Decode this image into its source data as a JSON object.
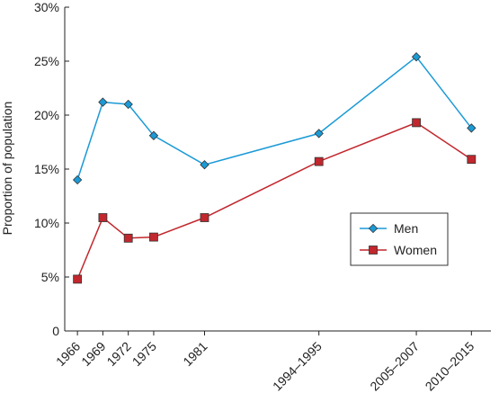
{
  "chart_data": {
    "type": "line",
    "categories": [
      "1966",
      "1969",
      "1972",
      "1975",
      "1981",
      "1994–1995",
      "2005–2007",
      "2010–2015"
    ],
    "x_positions": [
      1966,
      1969,
      1972,
      1975,
      1981,
      1994.5,
      2006,
      2012.5
    ],
    "series": [
      {
        "name": "Men",
        "values": [
          14.0,
          21.2,
          21.0,
          18.1,
          15.4,
          18.3,
          25.4,
          18.8
        ],
        "color": "#1b9ad6",
        "marker": "diamond"
      },
      {
        "name": "Women",
        "values": [
          4.8,
          10.5,
          8.6,
          8.7,
          10.5,
          15.7,
          19.3,
          15.9
        ],
        "color": "#c1272d",
        "marker": "square"
      }
    ],
    "title": "",
    "xlabel": "",
    "ylabel": "Proportion of population",
    "ylim": [
      0,
      30
    ],
    "yticks": [
      0,
      5,
      10,
      15,
      20,
      25,
      30
    ],
    "ytick_labels": [
      "0",
      "5%",
      "10%",
      "15%",
      "20%",
      "25%",
      "30%"
    ],
    "grid": false,
    "legend_position": "center-right"
  }
}
